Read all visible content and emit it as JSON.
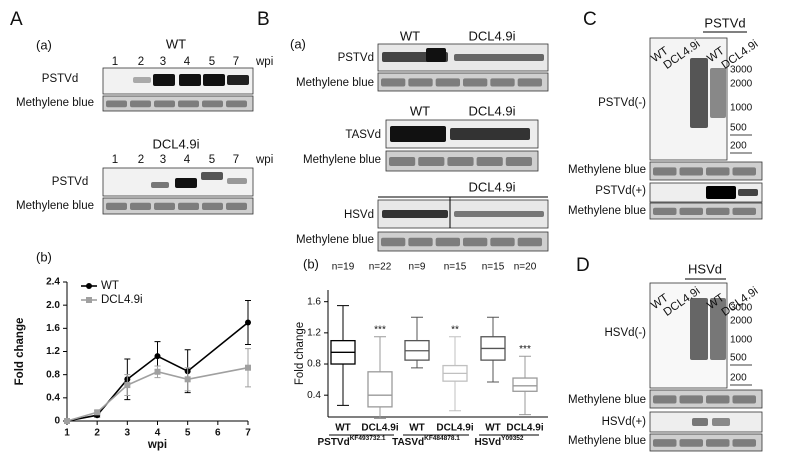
{
  "panels": {
    "A": {
      "letter": "A",
      "sub_a": "(a)",
      "sub_b": "(b)",
      "blots": [
        {
          "title": "WT",
          "lanes": [
            "1",
            "2",
            "3",
            "4",
            "5",
            "7"
          ],
          "unit": "wpi",
          "row1": "PSTVd",
          "row2": "Methylene blue"
        },
        {
          "title": "DCL4.9i",
          "lanes": [
            "1",
            "2",
            "3",
            "4",
            "5",
            "7"
          ],
          "unit": "wpi",
          "row1": "PSTVd",
          "row2": "Methylene blue"
        }
      ]
    },
    "B": {
      "letter": "B",
      "sub_a": "(a)",
      "sub_b": "(b)",
      "blots": [
        {
          "wt": "WT",
          "dcl": "DCL4.9i",
          "row1": "PSTVd",
          "row2": "Methylene blue"
        },
        {
          "wt": "WT",
          "dcl": "DCL4.9i",
          "row1": "TASVd",
          "row2": "Methylene blue"
        },
        {
          "dcl": "DCL4.9i",
          "row1": "HSVd",
          "row2": "Methylene blue"
        }
      ]
    },
    "C": {
      "letter": "C",
      "title": "PSTVd",
      "lanes": [
        "WT",
        "DCL4.9i",
        "WT",
        "DCL4.9i"
      ],
      "sizes": [
        "3000",
        "2000",
        "1000",
        "500",
        "200"
      ],
      "rows": [
        "PSTVd(-)",
        "Methylene blue",
        "PSTVd(+)",
        "Methylene blue"
      ]
    },
    "D": {
      "letter": "D",
      "title": "HSVd",
      "lanes": [
        "WT",
        "DCL4.9i",
        "WT",
        "DCL4.9i"
      ],
      "sizes": [
        "3000",
        "2000",
        "1000",
        "500",
        "200"
      ],
      "rows": [
        "HSVd(-)",
        "Methylene blue",
        "HSVd(+)",
        "Methylene blue"
      ]
    }
  },
  "chart_data": [
    {
      "type": "line",
      "x_label": "wpi",
      "y_label": "Fold change",
      "x": [
        1,
        2,
        3,
        4,
        5,
        7
      ],
      "xlim": [
        1,
        7
      ],
      "xticks": [
        1,
        2,
        3,
        4,
        5,
        6,
        7
      ],
      "ylim": [
        0,
        2.4
      ],
      "yticks": [
        0,
        0.4,
        0.8,
        1.2,
        1.6,
        {
          "value": 2,
          "label": "2.0"
        },
        2.4
      ],
      "legend": "upper left",
      "series": [
        {
          "name": "WT",
          "color": "#000000",
          "values": [
            0,
            0.1,
            0.72,
            1.12,
            0.86,
            1.7
          ],
          "errors": [
            0,
            0.03,
            0.35,
            0.25,
            0.37,
            0.38
          ]
        },
        {
          "name": "DCL4.9i",
          "color": "#a0a0a0",
          "values": [
            0,
            0.15,
            0.62,
            0.85,
            0.72,
            0.92
          ],
          "errors": [
            0,
            0.03,
            0.18,
            0.1,
            0.2,
            0.33
          ]
        }
      ]
    },
    {
      "type": "box",
      "y_label": "Fold change",
      "ylim": [
        0.12,
        1.75
      ],
      "yticks": [
        0.4,
        0.8,
        1.2,
        1.6
      ],
      "categories": [
        "WT",
        "DCL4.9i",
        "WT",
        "DCL4.9i",
        "WT",
        "DCL4.9i"
      ],
      "groups": [
        {
          "name": "PSTVd",
          "accession": "KF493732.1"
        },
        {
          "name": "TASVd",
          "accession": "KF484878.1"
        },
        {
          "name": "HSVd",
          "accession": "Y09352"
        }
      ],
      "boxes": [
        {
          "min": 0.27,
          "q1": 0.8,
          "median": 0.95,
          "q3": 1.1,
          "max": 1.55,
          "n": "n=19",
          "color": "#000000"
        },
        {
          "min": 0.1,
          "q1": 0.25,
          "median": 0.4,
          "q3": 0.7,
          "max": 1.15,
          "n": "n=22",
          "sig": "***",
          "color": "#9a9a9a"
        },
        {
          "min": 0.75,
          "q1": 0.85,
          "median": 0.97,
          "q3": 1.1,
          "max": 1.4,
          "n": "n=9",
          "color": "#555555"
        },
        {
          "min": 0.2,
          "q1": 0.58,
          "median": 0.68,
          "q3": 0.78,
          "max": 1.15,
          "n": "n=15",
          "sig": "**",
          "color": "#c0c0c0"
        },
        {
          "min": 0.57,
          "q1": 0.85,
          "median": 1.0,
          "q3": 1.15,
          "max": 1.4,
          "n": "n=15",
          "color": "#555555"
        },
        {
          "min": 0.15,
          "q1": 0.45,
          "median": 0.52,
          "q3": 0.62,
          "max": 0.9,
          "n": "n=20",
          "sig": "***",
          "color": "#9a9a9a"
        }
      ]
    }
  ]
}
